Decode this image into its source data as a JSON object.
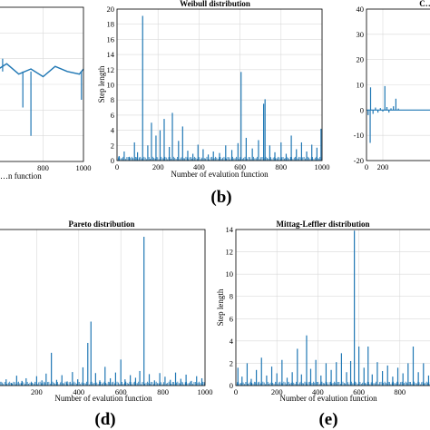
{
  "panels": [
    {
      "id": "a",
      "chart_data": {
        "type": "line",
        "title": "",
        "xlabel": "…n function",
        "ylabel": "",
        "xlim": [
          0,
          1000
        ],
        "x_ticks": [
          800,
          1000
        ],
        "x_tick_labels": [
          "800",
          "1000"
        ],
        "grid": true,
        "series": [
          {
            "x": [
              0,
              60,
              120,
              180,
              240,
              300,
              360,
              420,
              480,
              540,
              560,
              620,
              680,
              740,
              800,
              860,
              920,
              980,
              1000
            ],
            "y": [
              0.6,
              0.4,
              0.8,
              0.3,
              0.7,
              0.5,
              0.9,
              0.4,
              0.6,
              0.3,
              0.5,
              0.8,
              0.4,
              0.6,
              0.3,
              0.7,
              0.5,
              0.4,
              0.6
            ]
          }
        ],
        "spikes": [
          {
            "x": 30,
            "y": 1.3
          },
          {
            "x": 540,
            "y": 1.9
          },
          {
            "x": 600,
            "y": 1.0
          },
          {
            "x": 740,
            "y": -2.0
          },
          {
            "x": 990,
            "y": -0.6
          },
          {
            "x": 700,
            "y": -0.9
          }
        ]
      }
    },
    {
      "id": "b",
      "chart_data": {
        "type": "bar",
        "title": "Weibull distribution",
        "xlabel": "Number of evalution function",
        "ylabel": "Step length",
        "xlim": [
          0,
          1000
        ],
        "ylim": [
          0,
          20
        ],
        "x_ticks": [
          0,
          200,
          400,
          600,
          800,
          1000
        ],
        "y_ticks": [
          0,
          2,
          4,
          6,
          8,
          10,
          12,
          14,
          16,
          18,
          20
        ],
        "grid": true,
        "spikes": [
          {
            "x": 10,
            "y": 0.6
          },
          {
            "x": 35,
            "y": 1.2
          },
          {
            "x": 60,
            "y": 0.5
          },
          {
            "x": 85,
            "y": 2.4
          },
          {
            "x": 100,
            "y": 1.1
          },
          {
            "x": 125,
            "y": 19.1
          },
          {
            "x": 150,
            "y": 2.0
          },
          {
            "x": 168,
            "y": 5.0
          },
          {
            "x": 190,
            "y": 3.3
          },
          {
            "x": 210,
            "y": 4.0
          },
          {
            "x": 230,
            "y": 5.5
          },
          {
            "x": 255,
            "y": 1.8
          },
          {
            "x": 270,
            "y": 6.3
          },
          {
            "x": 300,
            "y": 2.6
          },
          {
            "x": 320,
            "y": 4.5
          },
          {
            "x": 345,
            "y": 1.3
          },
          {
            "x": 370,
            "y": 0.9
          },
          {
            "x": 395,
            "y": 2.1
          },
          {
            "x": 420,
            "y": 1.5
          },
          {
            "x": 445,
            "y": 0.8
          },
          {
            "x": 470,
            "y": 1.2
          },
          {
            "x": 500,
            "y": 1.0
          },
          {
            "x": 530,
            "y": 2.0
          },
          {
            "x": 560,
            "y": 1.4
          },
          {
            "x": 590,
            "y": 2.3
          },
          {
            "x": 605,
            "y": 11.7
          },
          {
            "x": 630,
            "y": 3.0
          },
          {
            "x": 660,
            "y": 1.6
          },
          {
            "x": 690,
            "y": 2.7
          },
          {
            "x": 715,
            "y": 7.5
          },
          {
            "x": 722,
            "y": 8.1
          },
          {
            "x": 745,
            "y": 2.0
          },
          {
            "x": 770,
            "y": 1.1
          },
          {
            "x": 800,
            "y": 2.4
          },
          {
            "x": 825,
            "y": 0.9
          },
          {
            "x": 850,
            "y": 3.3
          },
          {
            "x": 875,
            "y": 1.5
          },
          {
            "x": 900,
            "y": 2.4
          },
          {
            "x": 925,
            "y": 1.2
          },
          {
            "x": 950,
            "y": 2.1
          },
          {
            "x": 975,
            "y": 1.7
          },
          {
            "x": 995,
            "y": 4.2
          }
        ]
      }
    },
    {
      "id": "c",
      "chart_data": {
        "type": "bar",
        "title": "C…",
        "xlabel": "",
        "ylabel": "",
        "xlim": [
          0,
          1000
        ],
        "ylim": [
          -20,
          40
        ],
        "x_ticks": [
          0,
          200
        ],
        "y_ticks": [
          -20,
          -10,
          0,
          10,
          20,
          30,
          40
        ],
        "grid": true,
        "spikes": [
          {
            "x": 20,
            "y": -2.0
          },
          {
            "x": 45,
            "y": -13.0
          },
          {
            "x": 50,
            "y": 9.0
          },
          {
            "x": 80,
            "y": -1.5
          },
          {
            "x": 110,
            "y": 1.0
          },
          {
            "x": 140,
            "y": -1.0
          },
          {
            "x": 170,
            "y": 0.8
          },
          {
            "x": 200,
            "y": -0.6
          },
          {
            "x": 225,
            "y": 9.5
          },
          {
            "x": 250,
            "y": 1.2
          },
          {
            "x": 275,
            "y": -1.0
          },
          {
            "x": 300,
            "y": 0.7
          },
          {
            "x": 330,
            "y": 1.5
          },
          {
            "x": 360,
            "y": 4.5
          },
          {
            "x": 390,
            "y": 0.6
          }
        ]
      }
    },
    {
      "id": "d",
      "chart_data": {
        "type": "bar",
        "title": "Pareto distribution",
        "xlabel": "Number of evalution function",
        "ylabel": "",
        "xlim": [
          0,
          1000
        ],
        "ylim": [
          0,
          30
        ],
        "x_ticks": [
          200,
          400,
          600,
          800,
          1000
        ],
        "grid": true,
        "spikes": [
          {
            "x": 8,
            "y": 1.5
          },
          {
            "x": 30,
            "y": 0.7
          },
          {
            "x": 55,
            "y": 1.2
          },
          {
            "x": 80,
            "y": 0.5
          },
          {
            "x": 105,
            "y": 1.9
          },
          {
            "x": 130,
            "y": 0.9
          },
          {
            "x": 150,
            "y": 1.4
          },
          {
            "x": 175,
            "y": 0.6
          },
          {
            "x": 200,
            "y": 1.8
          },
          {
            "x": 225,
            "y": 1.0
          },
          {
            "x": 245,
            "y": 2.3
          },
          {
            "x": 270,
            "y": 6.3
          },
          {
            "x": 295,
            "y": 1.1
          },
          {
            "x": 320,
            "y": 2.0
          },
          {
            "x": 345,
            "y": 0.8
          },
          {
            "x": 370,
            "y": 2.6
          },
          {
            "x": 395,
            "y": 1.2
          },
          {
            "x": 420,
            "y": 3.5
          },
          {
            "x": 443,
            "y": 8.2
          },
          {
            "x": 458,
            "y": 12.3
          },
          {
            "x": 480,
            "y": 2.4
          },
          {
            "x": 500,
            "y": 1.0
          },
          {
            "x": 525,
            "y": 3.6
          },
          {
            "x": 550,
            "y": 1.4
          },
          {
            "x": 575,
            "y": 2.5
          },
          {
            "x": 600,
            "y": 5.0
          },
          {
            "x": 620,
            "y": 1.2
          },
          {
            "x": 645,
            "y": 2.0
          },
          {
            "x": 670,
            "y": 1.5
          },
          {
            "x": 690,
            "y": 2.8
          },
          {
            "x": 710,
            "y": 28.6
          },
          {
            "x": 735,
            "y": 2.2
          },
          {
            "x": 760,
            "y": 1.0
          },
          {
            "x": 785,
            "y": 2.4
          },
          {
            "x": 810,
            "y": 1.7
          },
          {
            "x": 835,
            "y": 1.1
          },
          {
            "x": 860,
            "y": 2.5
          },
          {
            "x": 885,
            "y": 1.3
          },
          {
            "x": 910,
            "y": 2.1
          },
          {
            "x": 935,
            "y": 0.9
          },
          {
            "x": 960,
            "y": 1.8
          },
          {
            "x": 985,
            "y": 1.4
          }
        ]
      }
    },
    {
      "id": "e",
      "chart_data": {
        "type": "bar",
        "title": "Mittag-Leffler distribution",
        "xlabel": "Number of evalution function",
        "ylabel": "Step length",
        "xlim": [
          0,
          1000
        ],
        "ylim": [
          0,
          14
        ],
        "x_ticks": [
          0,
          200,
          400,
          600,
          800
        ],
        "y_ticks": [
          0,
          2,
          4,
          6,
          8,
          10,
          12,
          14
        ],
        "grid": true,
        "spikes": [
          {
            "x": 10,
            "y": 1.6
          },
          {
            "x": 30,
            "y": 0.8
          },
          {
            "x": 55,
            "y": 2.0
          },
          {
            "x": 75,
            "y": 0.6
          },
          {
            "x": 100,
            "y": 1.4
          },
          {
            "x": 125,
            "y": 2.5
          },
          {
            "x": 150,
            "y": 0.9
          },
          {
            "x": 175,
            "y": 1.7
          },
          {
            "x": 200,
            "y": 1.1
          },
          {
            "x": 225,
            "y": 2.3
          },
          {
            "x": 250,
            "y": 0.7
          },
          {
            "x": 275,
            "y": 1.2
          },
          {
            "x": 300,
            "y": 3.3
          },
          {
            "x": 320,
            "y": 1.0
          },
          {
            "x": 345,
            "y": 4.5
          },
          {
            "x": 365,
            "y": 1.5
          },
          {
            "x": 390,
            "y": 2.3
          },
          {
            "x": 415,
            "y": 0.9
          },
          {
            "x": 440,
            "y": 2.0
          },
          {
            "x": 465,
            "y": 1.4
          },
          {
            "x": 490,
            "y": 2.1
          },
          {
            "x": 515,
            "y": 2.9
          },
          {
            "x": 540,
            "y": 1.2
          },
          {
            "x": 560,
            "y": 2.2
          },
          {
            "x": 578,
            "y": 13.9
          },
          {
            "x": 600,
            "y": 3.5
          },
          {
            "x": 625,
            "y": 1.6
          },
          {
            "x": 645,
            "y": 3.5
          },
          {
            "x": 665,
            "y": 1.0
          },
          {
            "x": 690,
            "y": 2.1
          },
          {
            "x": 715,
            "y": 1.3
          },
          {
            "x": 740,
            "y": 1.8
          },
          {
            "x": 765,
            "y": 0.8
          },
          {
            "x": 790,
            "y": 1.6
          },
          {
            "x": 815,
            "y": 1.1
          },
          {
            "x": 840,
            "y": 2.0
          },
          {
            "x": 865,
            "y": 3.5
          },
          {
            "x": 890,
            "y": 1.2
          },
          {
            "x": 915,
            "y": 2.0
          },
          {
            "x": 940,
            "y": 0.9
          },
          {
            "x": 965,
            "y": 1.5
          },
          {
            "x": 990,
            "y": 1.9
          }
        ]
      }
    }
  ],
  "labels": {
    "b": "(b)",
    "d": "(d)",
    "e": "(e)"
  },
  "colors": {
    "series": "#1f77b4",
    "grid": "#d9d9d9",
    "axis": "#000000"
  }
}
